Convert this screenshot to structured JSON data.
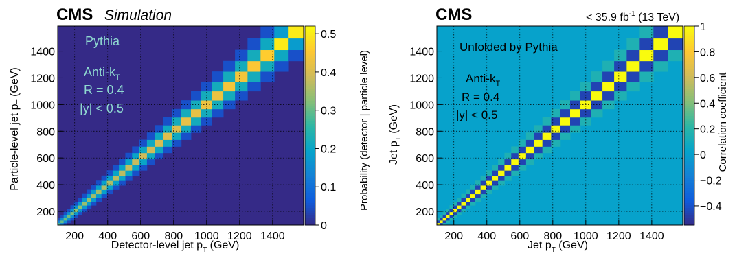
{
  "colors": {
    "axis": "#000000",
    "grid": "#000000",
    "matrix_annotation": "#8fd8d0",
    "correlation_annotation": "#000000"
  },
  "colormap": [
    "#352a87",
    "#0f5cdd",
    "#1481d6",
    "#06a4ca",
    "#2eb7a4",
    "#87bf77",
    "#d1bb59",
    "#fec832",
    "#f9fb0e"
  ],
  "chart_data": [
    {
      "type": "heatmap",
      "description_role": "response-matrix",
      "cms_label": "CMS",
      "cms_sublabel": "Simulation",
      "lumi_label": "",
      "annotations": [
        "Pythia",
        "Anti-k",
        "R = 0.4",
        "|y| < 0.5"
      ],
      "annotation_subscripts": {
        "anti_kt": "T"
      },
      "xlabel": "Detector-level jet p",
      "xlabel_sub": "T",
      "xlabel_unit": " (GeV)",
      "ylabel": "Particle-level jet p",
      "ylabel_sub": "T",
      "ylabel_unit": " (GeV)",
      "zlabel": "Probability (detector | particle level)",
      "xlim": [
        97,
        1588
      ],
      "ylim": [
        97,
        1588
      ],
      "zlim": [
        0,
        0.52
      ],
      "xticks": [
        200,
        400,
        600,
        800,
        1000,
        1200,
        1400
      ],
      "yticks": [
        200,
        400,
        600,
        800,
        1000,
        1200,
        1400
      ],
      "zticks": [
        0,
        0.1,
        0.2,
        0.3,
        0.4,
        0.5
      ],
      "zticklabels": [
        "0",
        "0.1",
        "0.2",
        "0.3",
        "0.4",
        "0.5"
      ],
      "grid": true,
      "bin_edges": [
        97,
        114,
        133,
        153,
        174,
        196,
        220,
        245,
        272,
        300,
        330,
        362,
        395,
        430,
        468,
        507,
        548,
        592,
        638,
        686,
        737,
        790,
        846,
        905,
        967,
        1032,
        1101,
        1172,
        1248,
        1327,
        1410,
        1497,
        1588
      ],
      "diagonal": [
        0.28,
        0.3,
        0.3,
        0.31,
        0.32,
        0.33,
        0.33,
        0.34,
        0.34,
        0.35,
        0.35,
        0.36,
        0.36,
        0.37,
        0.37,
        0.38,
        0.38,
        0.39,
        0.39,
        0.4,
        0.41,
        0.41,
        0.42,
        0.42,
        0.43,
        0.43,
        0.44,
        0.44,
        0.45,
        0.46,
        0.5,
        0.5
      ],
      "first_off_diagonal": [
        0.14,
        0.15,
        0.16,
        0.16,
        0.17,
        0.17,
        0.17,
        0.18,
        0.18,
        0.18,
        0.19,
        0.19,
        0.19,
        0.2,
        0.2,
        0.2,
        0.2,
        0.21,
        0.21,
        0.21,
        0.21,
        0.22,
        0.22,
        0.22,
        0.22,
        0.22,
        0.22,
        0.22,
        0.22,
        0.21,
        0.18,
        0.16
      ],
      "second_off_diagonal": [
        0.04,
        0.04,
        0.05,
        0.05,
        0.05,
        0.05,
        0.05,
        0.05,
        0.05,
        0.05,
        0.05,
        0.05,
        0.05,
        0.05,
        0.05,
        0.05,
        0.05,
        0.05,
        0.05,
        0.05,
        0.05,
        0.05,
        0.05,
        0.05,
        0.05,
        0.05,
        0.05,
        0.05,
        0.05,
        0.05,
        0.05,
        0.05
      ]
    },
    {
      "type": "heatmap",
      "description_role": "correlation-matrix",
      "cms_label": "CMS",
      "cms_sublabel": "",
      "lumi_label": "< 35.9 fb",
      "lumi_sup": "-1",
      "lumi_tail": " (13 TeV)",
      "annotations": [
        "Unfolded by Pythia",
        "Anti-k",
        "R = 0.4",
        "|y| < 0.5"
      ],
      "annotation_subscripts": {
        "anti_kt": "T"
      },
      "xlabel": "Jet p",
      "xlabel_sub": "T",
      "xlabel_unit": " (GeV)",
      "ylabel": "Jet p",
      "ylabel_sub": "T",
      "ylabel_unit": " (GeV)",
      "zlabel": "Correlation coefficient",
      "xlim": [
        97,
        1588
      ],
      "ylim": [
        97,
        1588
      ],
      "zlim": [
        -0.55,
        1.0
      ],
      "xticks": [
        200,
        400,
        600,
        800,
        1000,
        1200,
        1400
      ],
      "yticks": [
        200,
        400,
        600,
        800,
        1000,
        1200,
        1400
      ],
      "zticks": [
        -0.4,
        -0.2,
        0,
        0.2,
        0.4,
        0.6,
        0.8,
        1
      ],
      "zticklabels": [
        "−0.4",
        "−0.2",
        "0",
        "0.2",
        "0.4",
        "0.6",
        "0.8",
        "1"
      ],
      "grid": true,
      "bin_edges": [
        97,
        114,
        133,
        153,
        174,
        196,
        220,
        245,
        272,
        300,
        330,
        362,
        395,
        430,
        468,
        507,
        548,
        592,
        638,
        686,
        737,
        790,
        846,
        905,
        967,
        1032,
        1101,
        1172,
        1248,
        1327,
        1410,
        1497,
        1588
      ],
      "diagonal": 1.0,
      "first_off_diagonal": -0.45,
      "second_off_diagonal": 0.15,
      "background": 0.02
    }
  ]
}
